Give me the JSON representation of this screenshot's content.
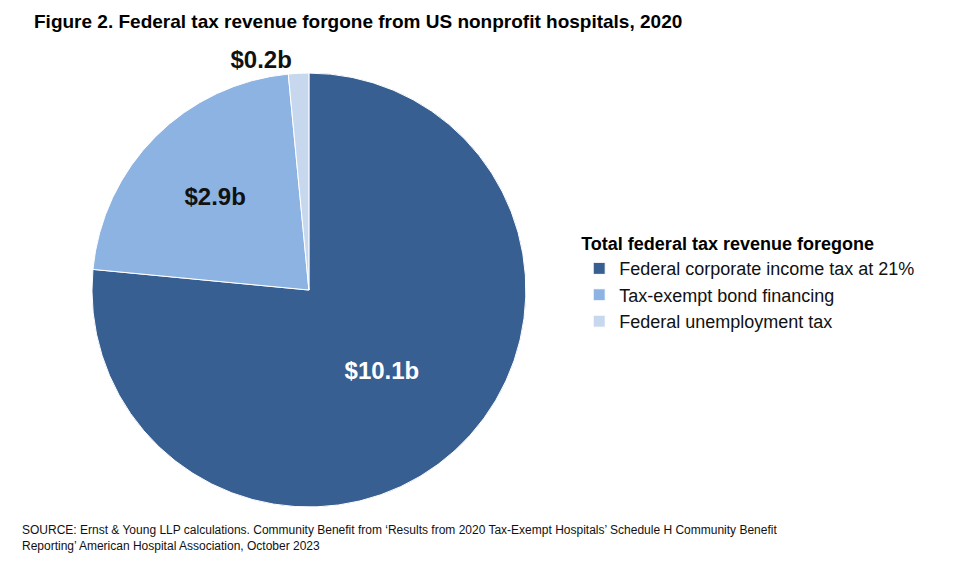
{
  "chart_data": {
    "type": "pie",
    "title": "Figure 2. Federal tax revenue forgone from US nonprofit hospitals, 2020",
    "legend_title": "Total federal tax revenue foregone",
    "categories": [
      "Federal corporate income tax at 21%",
      "Tax-exempt bond financing",
      "Federal unemployment tax"
    ],
    "values": [
      10.1,
      2.9,
      0.2
    ],
    "value_labels": [
      "$10.1b",
      "$2.9b",
      "$0.2b"
    ],
    "colors": [
      "#375f91",
      "#8db3e2",
      "#c6d7ee"
    ],
    "data_labels": true,
    "legend": "right",
    "annotations": [
      "SOURCE: Ernst & Young LLP calculations. Community Benefit from ‘Results from 2020 Tax-Exempt Hospitals’ Schedule H Community Benefit",
      "Reporting’ American Hospital Association, October 2023"
    ]
  }
}
